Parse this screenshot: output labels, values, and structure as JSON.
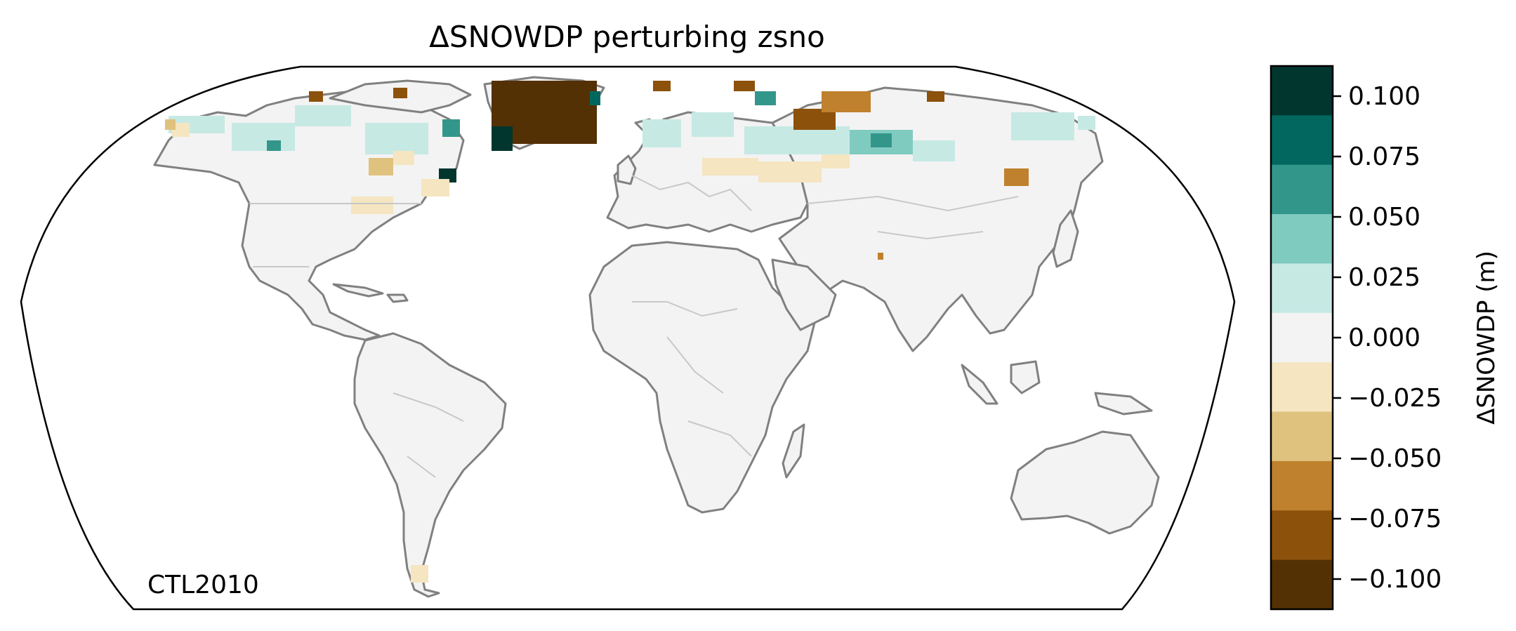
{
  "title": "ΔSNOWDP perturbing zsno",
  "panel_label": "CTL2010",
  "colorbar": {
    "label": "ΔSNOWDP (m)",
    "ticks": [
      "0.100",
      "0.075",
      "0.050",
      "0.025",
      "0.000",
      "−0.025",
      "−0.050",
      "−0.075",
      "−0.100"
    ],
    "levels_top_to_bottom": [
      "#01362f",
      "#02685f",
      "#33968b",
      "#80cbc0",
      "#c6e9e4",
      "#f3f3f3",
      "#f5e5c0",
      "#dfc27e",
      "#bf812d",
      "#8c510b",
      "#543005"
    ],
    "range": [
      -0.1,
      0.1
    ],
    "level_step": 0.025
  },
  "map": {
    "projection": "Robinson",
    "land_color": "#f3f3f3",
    "coastline_color": "#808080",
    "border_color": "#c8c8c8",
    "ocean_color": "#ffffff"
  }
}
